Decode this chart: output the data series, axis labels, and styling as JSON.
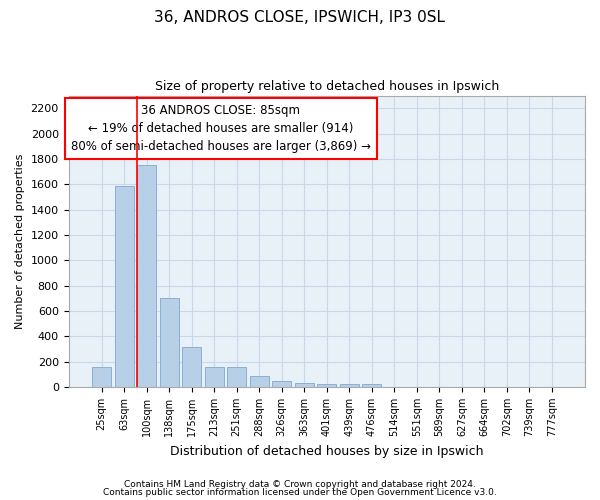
{
  "title": "36, ANDROS CLOSE, IPSWICH, IP3 0SL",
  "subtitle": "Size of property relative to detached houses in Ipswich",
  "xlabel": "Distribution of detached houses by size in Ipswich",
  "ylabel": "Number of detached properties",
  "categories": [
    "25sqm",
    "63sqm",
    "100sqm",
    "138sqm",
    "175sqm",
    "213sqm",
    "251sqm",
    "288sqm",
    "326sqm",
    "363sqm",
    "401sqm",
    "439sqm",
    "476sqm",
    "514sqm",
    "551sqm",
    "589sqm",
    "627sqm",
    "664sqm",
    "702sqm",
    "739sqm",
    "777sqm"
  ],
  "values": [
    160,
    1590,
    1750,
    700,
    315,
    160,
    155,
    85,
    50,
    30,
    20,
    20,
    20,
    0,
    0,
    0,
    0,
    0,
    0,
    0,
    0
  ],
  "bar_color": "#b8cfe8",
  "bar_edge_color": "#8aafd4",
  "grid_color": "#c8d8e8",
  "background_color": "#e8f0f8",
  "red_line_bar_index": 2,
  "annotation_line1": "36 ANDROS CLOSE: 85sqm",
  "annotation_line2": "← 19% of detached houses are smaller (914)",
  "annotation_line3": "80% of semi-detached houses are larger (3,869) →",
  "ylim": [
    0,
    2300
  ],
  "yticks": [
    0,
    200,
    400,
    600,
    800,
    1000,
    1200,
    1400,
    1600,
    1800,
    2000,
    2200
  ],
  "footer_line1": "Contains HM Land Registry data © Crown copyright and database right 2024.",
  "footer_line2": "Contains public sector information licensed under the Open Government Licence v3.0."
}
